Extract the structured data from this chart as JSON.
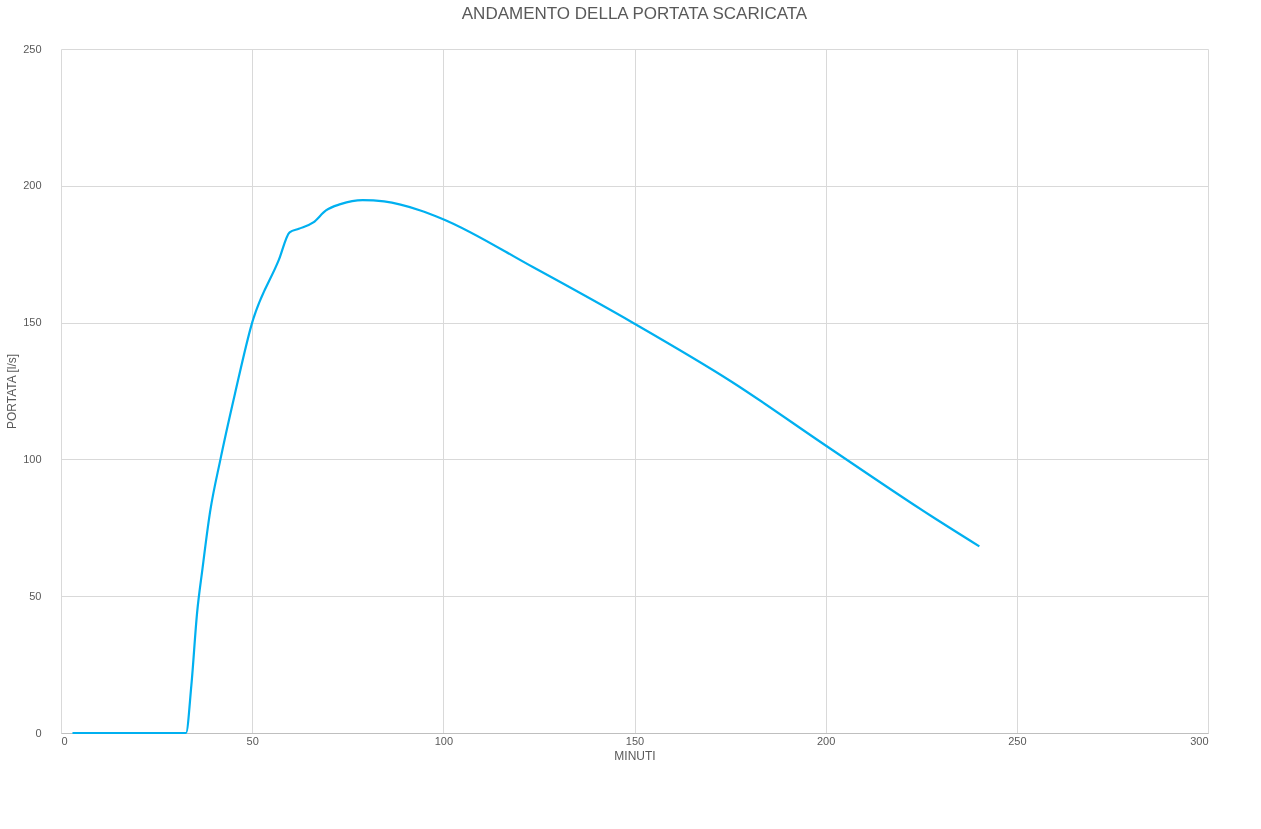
{
  "chart_data": {
    "type": "line",
    "title": "ANDAMENTO DELLA PORTATA SCARICATA",
    "xlabel": "MINUTI",
    "ylabel": "PORTATA [l/s]",
    "xlim": [
      0,
      300
    ],
    "xticks": [
      0,
      50,
      100,
      150,
      200,
      250,
      300
    ],
    "ylim": [
      0,
      250
    ],
    "yticks": [
      0,
      50,
      100,
      150,
      200,
      250
    ],
    "grid": true,
    "marker": "none",
    "line_style": "solid",
    "series": [
      {
        "color": "#00b0f0",
        "x": [
          3,
          15,
          29.8,
          32.7,
          34.1,
          35.6,
          37,
          38.9,
          41.7,
          45.5,
          50,
          57,
          59.8,
          62.2,
          66,
          69.3,
          73.1,
          78.9,
          84.5,
          94,
          99.8,
          123.4,
          150,
          175.4,
          200.1,
          227.5,
          240.2
        ],
        "values": [
          0,
          0,
          0,
          0,
          17.5,
          44,
          60,
          80,
          100,
          124,
          150,
          173,
          183,
          184.3,
          186.6,
          191,
          193.3,
          194.8,
          194.3,
          191,
          187.9,
          170.3,
          149.6,
          128.4,
          105,
          79.4,
          68.2
        ]
      }
    ]
  }
}
